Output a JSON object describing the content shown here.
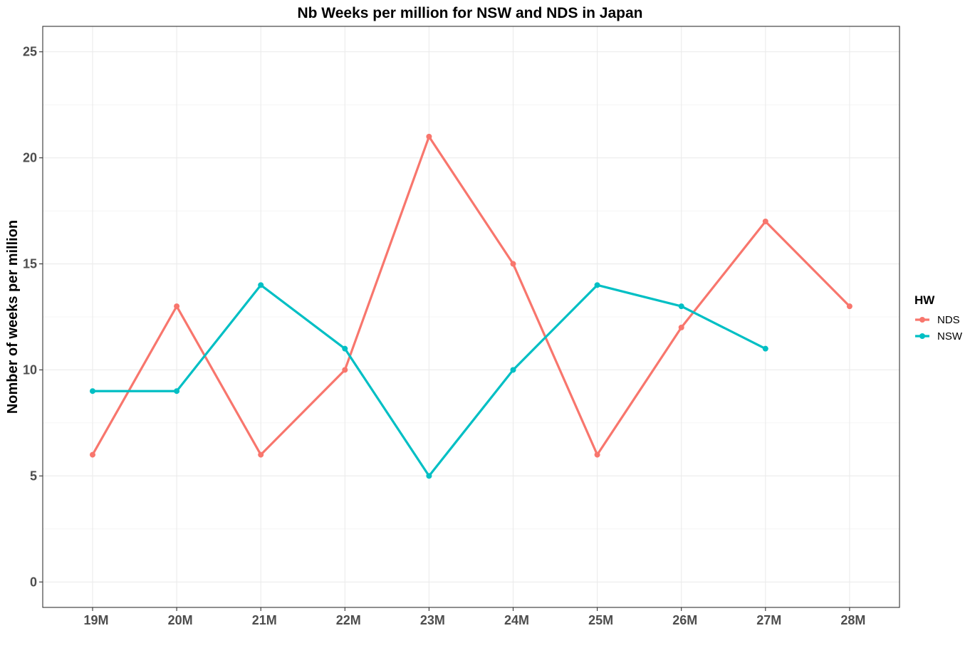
{
  "chart_data": {
    "type": "line",
    "title": "Nb Weeks per million for NSW and NDS in Japan",
    "xlabel": "",
    "ylabel": "Nomber of weeks per million",
    "categories": [
      "19M",
      "20M",
      "21M",
      "22M",
      "23M",
      "24M",
      "25M",
      "26M",
      "27M",
      "28M"
    ],
    "ylim": [
      -1.2,
      26.2
    ],
    "yticks": [
      0,
      5,
      10,
      15,
      20,
      25
    ],
    "grid": true,
    "legend": {
      "title": "HW",
      "placement": "right"
    },
    "series": [
      {
        "name": "NDS",
        "color": "#F8766D",
        "values": [
          6,
          13,
          6,
          10,
          21,
          15,
          6,
          12,
          17,
          13
        ]
      },
      {
        "name": "NSW",
        "color": "#00BFC4",
        "values": [
          9,
          9,
          14,
          11,
          5,
          10,
          14,
          13,
          11,
          null
        ]
      }
    ]
  }
}
